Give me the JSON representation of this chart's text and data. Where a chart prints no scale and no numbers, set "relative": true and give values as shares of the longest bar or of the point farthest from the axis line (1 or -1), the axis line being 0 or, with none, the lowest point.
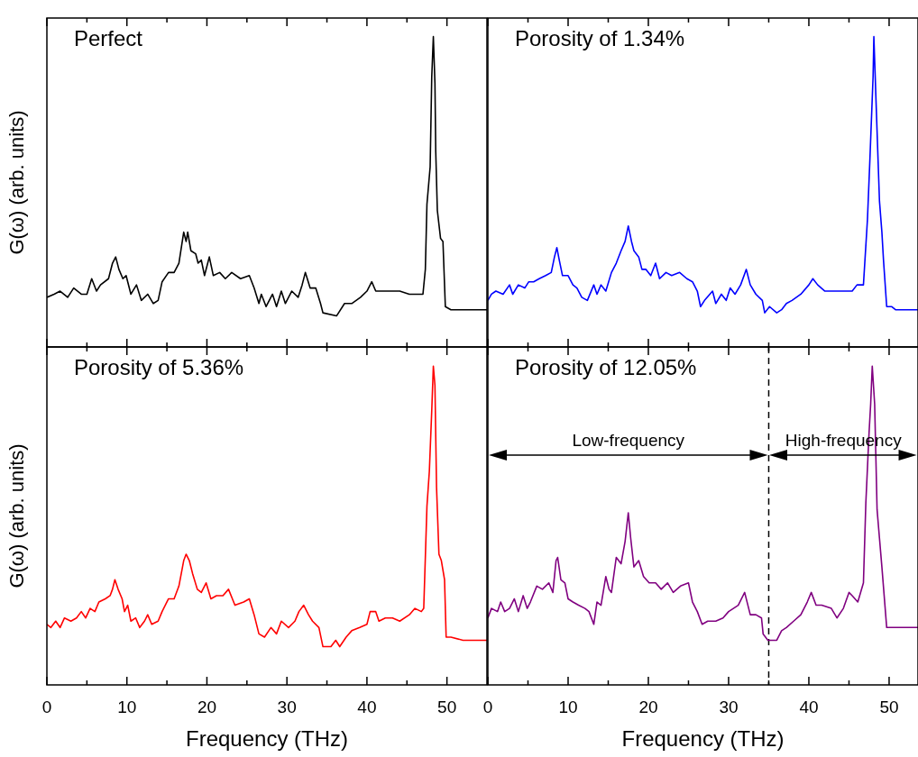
{
  "chart_data": [
    {
      "type": "line",
      "title": "Perfect",
      "ylabel": "G(ω) (arb. units)",
      "relative": true,
      "color": "#000000",
      "marker": "none",
      "line_style": "solid",
      "legend": false,
      "tick_labels": false,
      "xlim": [
        0,
        55
      ],
      "xticks": [
        0,
        {
          "value": 5,
          "label": null
        },
        10,
        {
          "value": 15,
          "label": null
        },
        20,
        {
          "value": 25,
          "label": null
        },
        30,
        {
          "value": 35,
          "label": null
        },
        40,
        {
          "value": 45,
          "label": null
        },
        50
      ],
      "x": [
        0,
        0.9,
        1.65,
        2.6,
        3.35,
        4.3,
        5.0,
        5.6,
        6.2,
        6.7,
        7.7,
        8.2,
        8.6,
        9.0,
        9.5,
        9.9,
        10.5,
        11.2,
        11.8,
        12.6,
        13.3,
        13.9,
        14.4,
        15.2,
        15.9,
        16.5,
        17.1,
        17.4,
        17.6,
        18.0,
        18.6,
        18.9,
        19.3,
        19.7,
        20.3,
        20.8,
        21.6,
        22.3,
        23.1,
        24.2,
        25.3,
        25.9,
        26.5,
        26.8,
        27.4,
        28.2,
        28.7,
        29.3,
        29.8,
        30.6,
        31.4,
        31.9,
        32.3,
        32.9,
        33.6,
        34.2,
        34.5,
        36.2,
        37.2,
        38.1,
        39.2,
        40.0,
        40.6,
        41.1,
        41.9,
        43.0,
        44.1,
        45.3,
        46.0,
        47.0,
        47.3,
        47.5,
        47.9,
        48.1,
        48.3,
        48.5,
        48.6,
        48.8,
        49.2,
        49.5,
        49.8,
        50.5,
        52.8,
        55.0
      ],
      "values": [
        0.16,
        0.17,
        0.18,
        0.16,
        0.19,
        0.17,
        0.17,
        0.22,
        0.18,
        0.2,
        0.22,
        0.27,
        0.29,
        0.25,
        0.22,
        0.23,
        0.17,
        0.2,
        0.15,
        0.17,
        0.14,
        0.15,
        0.21,
        0.24,
        0.24,
        0.27,
        0.37,
        0.34,
        0.37,
        0.31,
        0.3,
        0.27,
        0.28,
        0.23,
        0.29,
        0.23,
        0.24,
        0.22,
        0.24,
        0.22,
        0.23,
        0.19,
        0.14,
        0.17,
        0.13,
        0.17,
        0.13,
        0.18,
        0.14,
        0.18,
        0.16,
        0.2,
        0.24,
        0.19,
        0.19,
        0.14,
        0.11,
        0.1,
        0.14,
        0.14,
        0.16,
        0.18,
        0.21,
        0.18,
        0.18,
        0.18,
        0.18,
        0.17,
        0.17,
        0.17,
        0.25,
        0.46,
        0.58,
        0.87,
        1,
        0.85,
        0.63,
        0.44,
        0.35,
        0.34,
        0.13,
        0.12,
        0.12,
        0.12
      ]
    },
    {
      "type": "line",
      "title": "Porosity of 1.34%",
      "relative": true,
      "color": "#0000ff",
      "marker": "none",
      "line_style": "solid",
      "legend": false,
      "tick_labels": false,
      "xlim": [
        0,
        53.6
      ],
      "xticks": [
        0,
        {
          "value": 5,
          "label": null
        },
        10,
        {
          "value": 15,
          "label": null
        },
        20,
        {
          "value": 25,
          "label": null
        },
        30,
        {
          "value": 35,
          "label": null
        },
        40,
        {
          "value": 45,
          "label": null
        },
        50
      ],
      "x": [
        0,
        0.45,
        1.0,
        1.9,
        2.7,
        3.1,
        3.8,
        4.6,
        5.1,
        5.7,
        6.4,
        7.2,
        7.9,
        8.3,
        8.6,
        8.9,
        9.3,
        10.0,
        10.6,
        11.1,
        11.7,
        12.4,
        13.2,
        13.6,
        14.1,
        14.7,
        15.4,
        16.0,
        16.6,
        17.1,
        17.5,
        17.9,
        18.2,
        18.8,
        19.2,
        19.7,
        20.3,
        20.9,
        21.4,
        22.2,
        22.9,
        23.9,
        24.8,
        25.5,
        26.1,
        26.5,
        27.0,
        28.0,
        28.4,
        29.1,
        29.7,
        30.2,
        30.8,
        31.5,
        32.2,
        32.7,
        33.4,
        34.2,
        34.5,
        35.1,
        36.0,
        36.6,
        37.2,
        37.9,
        39.0,
        40.0,
        40.5,
        41.1,
        42.0,
        42.8,
        43.9,
        45.4,
        46.0,
        46.8,
        47.3,
        47.6,
        48.0,
        48.1,
        48.4,
        48.8,
        49.1,
        49.3,
        49.7,
        50.3,
        50.8,
        53.6
      ],
      "values": [
        0.15,
        0.17,
        0.18,
        0.17,
        0.2,
        0.17,
        0.2,
        0.19,
        0.21,
        0.21,
        0.22,
        0.23,
        0.24,
        0.29,
        0.32,
        0.28,
        0.23,
        0.23,
        0.2,
        0.19,
        0.16,
        0.15,
        0.2,
        0.17,
        0.2,
        0.18,
        0.24,
        0.27,
        0.31,
        0.34,
        0.39,
        0.34,
        0.31,
        0.29,
        0.25,
        0.25,
        0.23,
        0.27,
        0.22,
        0.24,
        0.23,
        0.24,
        0.22,
        0.21,
        0.18,
        0.13,
        0.15,
        0.18,
        0.14,
        0.17,
        0.15,
        0.19,
        0.17,
        0.2,
        0.25,
        0.2,
        0.17,
        0.15,
        0.11,
        0.13,
        0.11,
        0.12,
        0.14,
        0.15,
        0.17,
        0.2,
        0.22,
        0.2,
        0.18,
        0.18,
        0.18,
        0.18,
        0.2,
        0.2,
        0.41,
        0.6,
        0.87,
        1,
        0.77,
        0.47,
        0.37,
        0.28,
        0.13,
        0.13,
        0.12,
        0.12
      ]
    },
    {
      "type": "line",
      "title": "Porosity of 5.36%",
      "ylabel": "G(ω) (arb. units)",
      "xlabel": "Frequency (THz)",
      "relative": true,
      "color": "#ff0000",
      "marker": "none",
      "line_style": "solid",
      "legend": false,
      "tick_labels": "x",
      "xlim": [
        0,
        55
      ],
      "xticks": [
        0,
        {
          "value": 5,
          "label": null
        },
        10,
        {
          "value": 15,
          "label": null
        },
        20,
        {
          "value": 25,
          "label": null
        },
        30,
        {
          "value": 35,
          "label": null
        },
        40,
        {
          "value": 45,
          "label": null
        },
        50
      ],
      "x": [
        0,
        0.5,
        1.1,
        1.65,
        2.2,
        3.0,
        3.7,
        4.3,
        4.85,
        5.4,
        6.0,
        6.5,
        7.3,
        7.9,
        8.2,
        8.5,
        8.9,
        9.4,
        9.7,
        10.1,
        10.5,
        11.1,
        11.6,
        12.2,
        12.6,
        13.1,
        13.9,
        14.4,
        15.2,
        15.9,
        16.5,
        17.1,
        17.4,
        17.8,
        18.2,
        18.8,
        19.3,
        19.9,
        20.5,
        21.2,
        22.0,
        22.7,
        23.5,
        24.6,
        25.3,
        25.9,
        26.5,
        27.2,
        28.0,
        28.7,
        29.3,
        30.2,
        31.0,
        31.5,
        32.1,
        32.7,
        33.2,
        34.0,
        34.5,
        35.5,
        36.1,
        36.6,
        37.4,
        38.1,
        39.1,
        40.0,
        40.4,
        41.1,
        41.5,
        42.3,
        43.2,
        44.1,
        45.3,
        46.0,
        46.8,
        47.1,
        47.5,
        47.8,
        48.1,
        48.3,
        48.5,
        48.7,
        49.0,
        49.3,
        49.7,
        49.9,
        50.5,
        52.0,
        55.0
      ],
      "values": [
        0.19,
        0.18,
        0.2,
        0.18,
        0.21,
        0.2,
        0.21,
        0.23,
        0.21,
        0.24,
        0.23,
        0.26,
        0.27,
        0.28,
        0.3,
        0.33,
        0.3,
        0.27,
        0.23,
        0.25,
        0.2,
        0.21,
        0.18,
        0.2,
        0.22,
        0.19,
        0.2,
        0.23,
        0.27,
        0.27,
        0.31,
        0.39,
        0.41,
        0.39,
        0.35,
        0.3,
        0.29,
        0.32,
        0.27,
        0.28,
        0.28,
        0.3,
        0.25,
        0.26,
        0.27,
        0.22,
        0.16,
        0.15,
        0.18,
        0.16,
        0.2,
        0.18,
        0.2,
        0.23,
        0.25,
        0.22,
        0.2,
        0.18,
        0.12,
        0.12,
        0.14,
        0.12,
        0.15,
        0.17,
        0.18,
        0.19,
        0.23,
        0.23,
        0.2,
        0.21,
        0.21,
        0.2,
        0.22,
        0.24,
        0.23,
        0.24,
        0.56,
        0.67,
        0.86,
        1,
        0.94,
        0.62,
        0.41,
        0.39,
        0.33,
        0.15,
        0.15,
        0.14,
        0.14
      ]
    },
    {
      "type": "line",
      "title": "Porosity of 12.05%",
      "xlabel": "Frequency (THz)",
      "relative": true,
      "color": "#800080",
      "marker": "none",
      "line_style": "solid",
      "legend": false,
      "tick_labels": "x",
      "xlim": [
        0,
        53.6
      ],
      "xticks": [
        0,
        {
          "value": 5,
          "label": null
        },
        10,
        {
          "value": 15,
          "label": null
        },
        20,
        {
          "value": 25,
          "label": null
        },
        30,
        {
          "value": 35,
          "label": null
        },
        40,
        {
          "value": 45,
          "label": null
        },
        50
      ],
      "ref_lines": [
        {
          "axis": "x",
          "value": 35,
          "color": "#000000",
          "line_style": "dashed"
        }
      ],
      "annotations": [
        "Low-frequency",
        "High-frequency"
      ],
      "x": [
        0,
        0.45,
        1.2,
        1.6,
        2.1,
        2.7,
        3.3,
        3.8,
        4.4,
        4.9,
        5.3,
        6.1,
        6.8,
        7.6,
        8.1,
        8.5,
        8.7,
        9.1,
        9.6,
        10.0,
        10.6,
        11.3,
        12.1,
        12.6,
        13.2,
        13.6,
        14.1,
        14.7,
        15.1,
        15.4,
        16.0,
        16.6,
        17.1,
        17.5,
        17.8,
        18.2,
        18.8,
        19.4,
        20.1,
        20.9,
        21.6,
        22.4,
        23.1,
        24.0,
        25.0,
        25.5,
        26.1,
        26.7,
        27.4,
        28.4,
        29.3,
        30.0,
        31.2,
        32.0,
        32.7,
        33.4,
        34.1,
        34.3,
        34.9,
        36.0,
        36.6,
        37.2,
        38.1,
        39.0,
        39.8,
        40.3,
        40.9,
        41.6,
        42.8,
        43.5,
        44.3,
        45.0,
        45.4,
        46.1,
        46.8,
        47.1,
        47.5,
        47.7,
        47.9,
        48.2,
        48.5,
        48.8,
        49.1,
        49.7,
        50.4,
        53.6
      ],
      "values": [
        0.21,
        0.24,
        0.23,
        0.26,
        0.23,
        0.24,
        0.27,
        0.23,
        0.28,
        0.24,
        0.26,
        0.31,
        0.3,
        0.32,
        0.29,
        0.39,
        0.4,
        0.33,
        0.32,
        0.27,
        0.26,
        0.25,
        0.24,
        0.23,
        0.19,
        0.26,
        0.25,
        0.34,
        0.3,
        0.29,
        0.4,
        0.38,
        0.45,
        0.54,
        0.46,
        0.37,
        0.39,
        0.34,
        0.32,
        0.32,
        0.3,
        0.32,
        0.29,
        0.31,
        0.32,
        0.26,
        0.23,
        0.19,
        0.2,
        0.2,
        0.21,
        0.23,
        0.25,
        0.29,
        0.22,
        0.22,
        0.21,
        0.16,
        0.14,
        0.14,
        0.17,
        0.18,
        0.2,
        0.22,
        0.26,
        0.29,
        0.25,
        0.25,
        0.24,
        0.21,
        0.24,
        0.29,
        0.28,
        0.26,
        0.32,
        0.57,
        0.79,
        0.88,
        1,
        0.88,
        0.55,
        0.46,
        0.37,
        0.18,
        0.18,
        0.18
      ]
    }
  ]
}
